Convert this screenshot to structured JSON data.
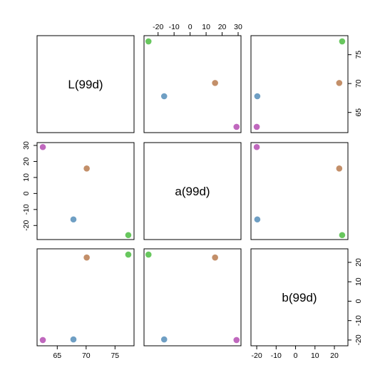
{
  "chart_data": {
    "type": "scatter",
    "matrix": "pairs",
    "variables": [
      "L(99d)",
      "a(99d)",
      "b(99d)"
    ],
    "points": [
      {
        "color": "#68c75e",
        "L(99d)": 77.3,
        "a(99d)": -26.0,
        "b(99d)": 24.0
      },
      {
        "color": "#6f9fc4",
        "L(99d)": 67.8,
        "a(99d)": -16.2,
        "b(99d)": -19.7
      },
      {
        "color": "#c38f69",
        "L(99d)": 70.1,
        "a(99d)": 15.6,
        "b(99d)": 22.5
      },
      {
        "color": "#c068be",
        "L(99d)": 62.5,
        "a(99d)": 29.0,
        "b(99d)": -20.0
      }
    ],
    "ranges": {
      "L(99d)": [
        62.0,
        77.8
      ],
      "a(99d)": [
        -27.0,
        30.0
      ],
      "b(99d)": [
        -21.5,
        25.5
      ]
    },
    "ticks": {
      "L(99d)": [
        65,
        70,
        75
      ],
      "a(99d)": [
        -20,
        -10,
        0,
        10,
        20,
        30
      ],
      "b(99d)": [
        -20,
        -10,
        0,
        10,
        20
      ]
    },
    "axes": {
      "top_col1": {
        "var": "a(99d)",
        "labels": [
          "-20",
          "-10",
          "0",
          "10",
          "20",
          "30"
        ]
      },
      "right_row0": {
        "var": "L(99d)",
        "labels": [
          "65",
          "70",
          "75"
        ]
      },
      "left_row1": {
        "var": "a(99d)",
        "labels": [
          "-20",
          "-10",
          "0",
          "10",
          "20",
          "30"
        ]
      },
      "right_row2": {
        "var": "b(99d)",
        "labels": [
          "-20",
          "-10",
          "0",
          "10",
          "20"
        ]
      },
      "bottom_col0": {
        "var": "L(99d)",
        "labels": [
          "65",
          "70",
          "75"
        ]
      },
      "bottom_col2": {
        "var": "b(99d)",
        "labels": [
          "-20",
          "-10",
          "0",
          "10",
          "20"
        ]
      }
    },
    "grid": false,
    "legend": "none"
  }
}
